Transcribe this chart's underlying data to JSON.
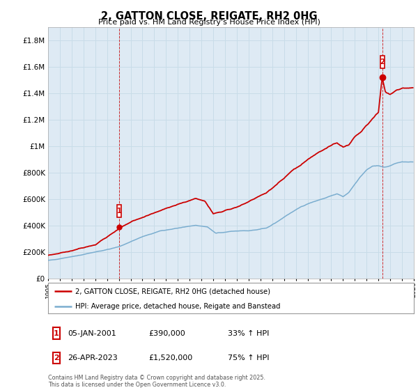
{
  "title": "2, GATTON CLOSE, REIGATE, RH2 0HG",
  "subtitle": "Price paid vs. HM Land Registry's House Price Index (HPI)",
  "legend_line1": "2, GATTON CLOSE, REIGATE, RH2 0HG (detached house)",
  "legend_line2": "HPI: Average price, detached house, Reigate and Banstead",
  "footer": "Contains HM Land Registry data © Crown copyright and database right 2025.\nThis data is licensed under the Open Government Licence v3.0.",
  "annotation1_text": "05-JAN-2001",
  "annotation1_price": "£390,000",
  "annotation1_hpi": "33% ↑ HPI",
  "annotation2_text": "26-APR-2023",
  "annotation2_price": "£1,520,000",
  "annotation2_hpi": "75% ↑ HPI",
  "red_color": "#cc0000",
  "blue_color": "#7aadcf",
  "grid_color": "#c8dce8",
  "plot_bg_color": "#deeaf4",
  "background_color": "#ffffff",
  "ylim": [
    0,
    1900000
  ],
  "yticks": [
    0,
    200000,
    400000,
    600000,
    800000,
    1000000,
    1200000,
    1400000,
    1600000,
    1800000
  ],
  "ytick_labels": [
    "£0",
    "£200K",
    "£400K",
    "£600K",
    "£800K",
    "£1M",
    "£1.2M",
    "£1.4M",
    "£1.6M",
    "£1.8M"
  ],
  "sale1_year": 2001.04,
  "sale1_y": 390000,
  "sale2_year": 2023.32,
  "sale2_y": 1520000,
  "xmin": 1995,
  "xmax": 2026
}
